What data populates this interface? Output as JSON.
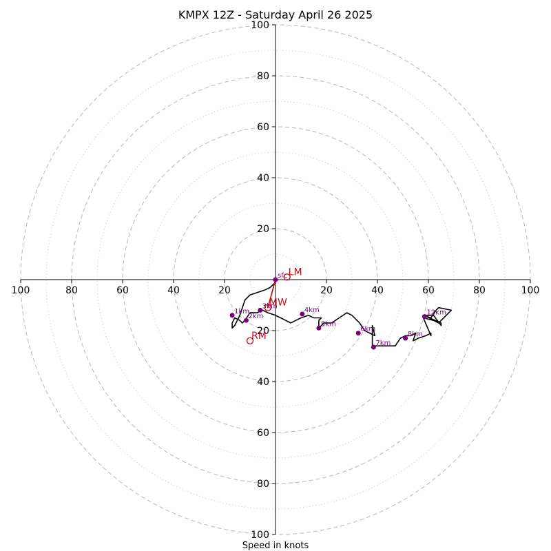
{
  "chart_data": {
    "type": "scatter",
    "title": "KMPX 12Z - Saturday April 26 2025",
    "xlabel": "Speed in knots",
    "ylabel": "",
    "xlim": [
      -100,
      100
    ],
    "ylim": [
      -100,
      100
    ],
    "major_rings": [
      20,
      40,
      60,
      80,
      100
    ],
    "minor_rings": [
      10,
      30,
      50,
      70,
      90
    ],
    "tick_labels": {
      "x_left": [
        "100",
        "80",
        "60",
        "40",
        "20"
      ],
      "x_right": [
        "20",
        "40",
        "60",
        "80",
        "100"
      ],
      "y_up": [
        "20",
        "40",
        "60",
        "80",
        "100"
      ],
      "y_down": [
        "20",
        "40",
        "60",
        "80",
        "100"
      ]
    },
    "hodograph": {
      "u": [
        0,
        0,
        -1,
        -2,
        -4,
        -7,
        -10,
        -12,
        -13,
        -14,
        -15,
        -16,
        -17,
        -17,
        -16,
        -14,
        -13,
        -12,
        -10,
        -7,
        -6,
        -5,
        -3,
        0,
        2,
        4,
        6,
        8,
        10,
        13,
        15,
        18,
        17,
        17,
        19,
        22,
        25,
        28,
        30,
        32,
        33,
        35,
        39,
        38,
        38,
        38,
        39,
        40,
        42,
        46,
        47,
        49,
        51,
        53,
        55,
        54,
        56,
        59,
        61,
        61,
        58,
        62,
        64,
        65,
        69,
        64,
        63,
        61,
        58,
        65,
        65,
        62,
        59
      ],
      "v": [
        0,
        1,
        2,
        3,
        4,
        5,
        6,
        8,
        11,
        14,
        16,
        18,
        19,
        17,
        15,
        16,
        17,
        16,
        13,
        13,
        12,
        12,
        13,
        14,
        15,
        16,
        17,
        16,
        15,
        14,
        15,
        15,
        16,
        19,
        17,
        17,
        15,
        13,
        14,
        16,
        17,
        20,
        22,
        18,
        23,
        26,
        26,
        26,
        26,
        26,
        26,
        23,
        22,
        22,
        21,
        24,
        23,
        22,
        21,
        22,
        15,
        16,
        17,
        16,
        12,
        11,
        12,
        15,
        14,
        17,
        18,
        14,
        14
      ]
    },
    "height_markers": [
      {
        "label": "3km",
        "u": -6,
        "v": 12
      },
      {
        "label": "1km",
        "u": -17,
        "v": 14
      },
      {
        "label": "2km",
        "u": -11.5,
        "v": 16
      },
      {
        "label": "4km",
        "u": 10.5,
        "v": 13.5
      },
      {
        "label": "5km",
        "u": 17,
        "v": 19
      },
      {
        "label": "6km",
        "u": 32.5,
        "v": 21
      },
      {
        "label": "7km",
        "u": 38.5,
        "v": 26.5
      },
      {
        "label": "8km",
        "u": 51,
        "v": 23
      },
      {
        "label": "12km",
        "u": 58.5,
        "v": 14.5
      }
    ],
    "surface_label": "sfc",
    "surface_point": {
      "u": 0,
      "v": 0
    },
    "shear_vector": {
      "from": {
        "u": 0,
        "v": 0
      },
      "to": {
        "u": -3,
        "v": 11
      }
    },
    "storm_motion": [
      {
        "label": "LM",
        "u": 4.5,
        "v": -1
      },
      {
        "label": "MW",
        "u": -3,
        "v": 11
      },
      {
        "label": "RM",
        "u": -10,
        "v": 24
      }
    ],
    "colors": {
      "hodograph": "#000000",
      "height_marker": "#7a007a",
      "shear_vector": "#d00000",
      "storm_motion": "#c0101a",
      "major_ring": "#bdbdbd",
      "minor_ring": "#d6d6d6"
    },
    "grid": true
  }
}
